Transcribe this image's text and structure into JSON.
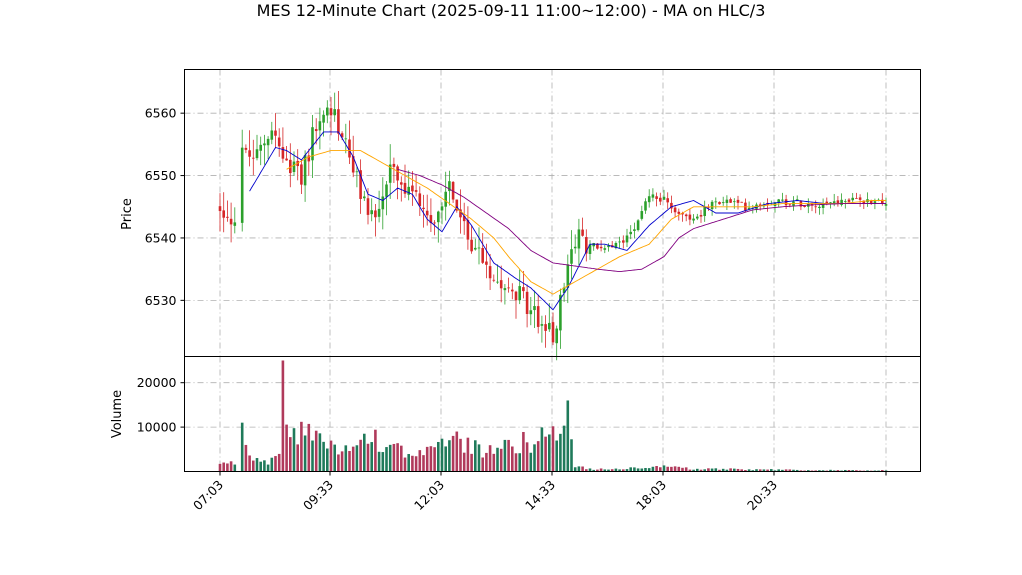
{
  "chart_data": {
    "type": "candlestick",
    "title": "MES 12-Minute Chart (2025-09-11 11:00~12:00) - MA on HLC/3",
    "price_panel": {
      "ylabel": "Price",
      "ylim": [
        6521,
        6567
      ],
      "yticks": [
        6530,
        6540,
        6550,
        6560
      ],
      "grid": true,
      "up_color": "#2ca02c",
      "down_color": "#d62728"
    },
    "volume_panel": {
      "ylabel": "Volume",
      "ylim": [
        0,
        25000
      ],
      "yticks": [
        10000,
        20000
      ],
      "grid": true
    },
    "xtick_labels": [
      "07:03",
      "09:33",
      "12:03",
      "14:33",
      "18:03",
      "20:33"
    ],
    "ma_lines": [
      {
        "color": "#0000cc",
        "anchors": [
          [
            8,
            6547.5
          ],
          [
            15,
            6554.5
          ],
          [
            18,
            6554
          ],
          [
            22,
            6552.5
          ],
          [
            28,
            6557
          ],
          [
            32,
            6557
          ],
          [
            36,
            6553
          ],
          [
            40,
            6547
          ],
          [
            44,
            6546
          ],
          [
            48,
            6548
          ],
          [
            52,
            6547
          ],
          [
            56,
            6543
          ],
          [
            60,
            6541
          ],
          [
            64,
            6545
          ],
          [
            68,
            6542
          ],
          [
            74,
            6536
          ],
          [
            80,
            6533.5
          ],
          [
            84,
            6532
          ],
          [
            90,
            6528.5
          ],
          [
            94,
            6532
          ],
          [
            100,
            6539
          ],
          [
            104,
            6539
          ],
          [
            110,
            6538
          ],
          [
            116,
            6542
          ],
          [
            122,
            6545
          ],
          [
            128,
            6546
          ],
          [
            134,
            6544
          ],
          [
            140,
            6544
          ],
          [
            148,
            6545.5
          ],
          [
            156,
            6546
          ],
          [
            164,
            6545.5
          ],
          [
            172,
            6545.5
          ],
          [
            180,
            6545.5
          ]
        ]
      },
      {
        "color": "#ffa500",
        "anchors": [
          [
            18,
            6551
          ],
          [
            24,
            6553
          ],
          [
            30,
            6554
          ],
          [
            38,
            6554
          ],
          [
            44,
            6552
          ],
          [
            50,
            6550
          ],
          [
            56,
            6548
          ],
          [
            62,
            6545.5
          ],
          [
            68,
            6543
          ],
          [
            74,
            6540
          ],
          [
            78,
            6537
          ],
          [
            84,
            6533
          ],
          [
            90,
            6531
          ],
          [
            96,
            6533
          ],
          [
            102,
            6535
          ],
          [
            108,
            6537
          ],
          [
            116,
            6539
          ],
          [
            122,
            6543
          ],
          [
            128,
            6545
          ],
          [
            136,
            6545
          ],
          [
            144,
            6545
          ],
          [
            152,
            6545.5
          ],
          [
            160,
            6545.5
          ],
          [
            168,
            6545.5
          ],
          [
            176,
            6546
          ],
          [
            180,
            6546
          ]
        ]
      },
      {
        "color": "#800080",
        "anchors": [
          [
            48,
            6551
          ],
          [
            54,
            6550
          ],
          [
            60,
            6548.5
          ],
          [
            66,
            6546.5
          ],
          [
            72,
            6544
          ],
          [
            78,
            6541.5
          ],
          [
            84,
            6538
          ],
          [
            90,
            6536
          ],
          [
            96,
            6535.5
          ],
          [
            102,
            6535
          ],
          [
            108,
            6534.6
          ],
          [
            114,
            6535
          ],
          [
            120,
            6537
          ],
          [
            124,
            6540
          ],
          [
            128,
            6541.5
          ],
          [
            136,
            6543
          ],
          [
            144,
            6544.5
          ],
          [
            152,
            6545
          ],
          [
            160,
            6545.3
          ],
          [
            168,
            6545.5
          ],
          [
            176,
            6545.5
          ],
          [
            180,
            6545.5
          ]
        ]
      }
    ],
    "price_anchors": [
      [
        0,
        6545
      ],
      [
        5,
        6542
      ],
      [
        6,
        6553
      ],
      [
        10,
        6553
      ],
      [
        14,
        6558
      ],
      [
        18,
        6551
      ],
      [
        22,
        6550
      ],
      [
        26,
        6558
      ],
      [
        30,
        6561
      ],
      [
        34,
        6555
      ],
      [
        38,
        6547
      ],
      [
        42,
        6543
      ],
      [
        46,
        6551
      ],
      [
        50,
        6547
      ],
      [
        54,
        6546
      ],
      [
        58,
        6543
      ],
      [
        62,
        6549
      ],
      [
        66,
        6541
      ],
      [
        70,
        6538
      ],
      [
        74,
        6534
      ],
      [
        78,
        6533
      ],
      [
        82,
        6530
      ],
      [
        86,
        6527
      ],
      [
        90,
        6524
      ],
      [
        92,
        6530
      ],
      [
        96,
        6540
      ],
      [
        100,
        6539
      ],
      [
        104,
        6538
      ],
      [
        108,
        6539
      ],
      [
        112,
        6542
      ],
      [
        116,
        6547
      ],
      [
        120,
        6546
      ],
      [
        124,
        6544
      ],
      [
        128,
        6543
      ],
      [
        132,
        6545
      ],
      [
        136,
        6546
      ],
      [
        142,
        6545
      ],
      [
        150,
        6546
      ],
      [
        160,
        6545.5
      ],
      [
        170,
        6546
      ],
      [
        180,
        6546
      ]
    ],
    "volume_anchors": [
      [
        0,
        1500
      ],
      [
        5,
        2000
      ],
      [
        6,
        11000
      ],
      [
        8,
        3000
      ],
      [
        14,
        2500
      ],
      [
        16,
        3500
      ],
      [
        17,
        25000
      ],
      [
        18,
        9500
      ],
      [
        22,
        9000
      ],
      [
        26,
        8000
      ],
      [
        30,
        6000
      ],
      [
        36,
        7000
      ],
      [
        44,
        7000
      ],
      [
        50,
        4500
      ],
      [
        56,
        5000
      ],
      [
        60,
        5500
      ],
      [
        64,
        6500
      ],
      [
        70,
        5000
      ],
      [
        76,
        5500
      ],
      [
        82,
        6500
      ],
      [
        86,
        7000
      ],
      [
        90,
        8000
      ],
      [
        92,
        11000
      ],
      [
        94,
        16000
      ],
      [
        96,
        1000
      ],
      [
        102,
        500
      ],
      [
        110,
        700
      ],
      [
        120,
        1000
      ],
      [
        128,
        600
      ],
      [
        140,
        500
      ],
      [
        150,
        400
      ],
      [
        160,
        300
      ],
      [
        180,
        250
      ]
    ]
  }
}
